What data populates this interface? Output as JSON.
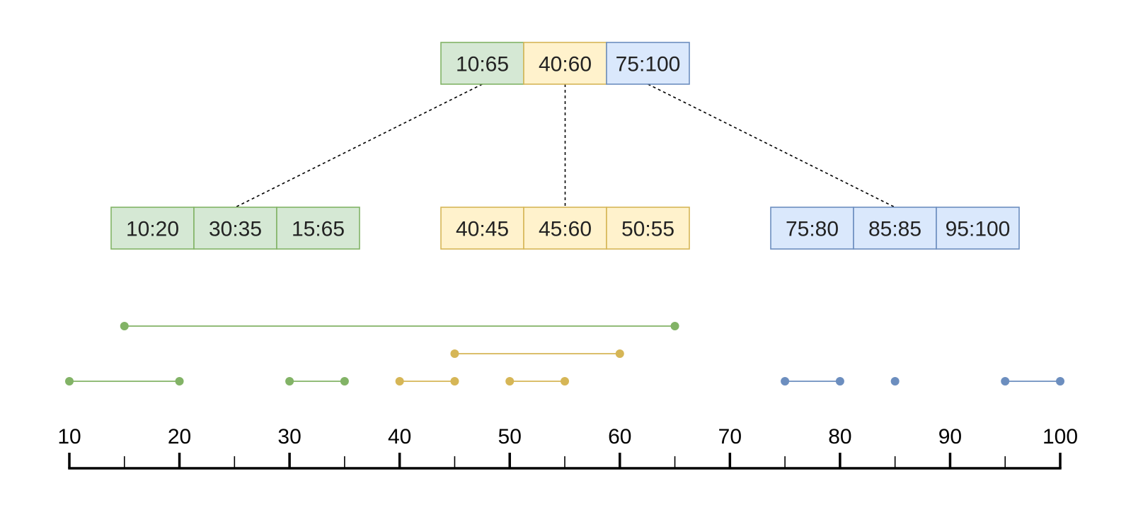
{
  "colors": {
    "green": {
      "fill": "#d5e8d4",
      "stroke": "#82b366"
    },
    "yellow": {
      "fill": "#fff2cc",
      "stroke": "#d6b656"
    },
    "blue": {
      "fill": "#dae8fc",
      "stroke": "#6c8ebf"
    },
    "text": "#222222",
    "axis": "#000000"
  },
  "root_node": {
    "cells": [
      {
        "label": "10:65",
        "color": "green"
      },
      {
        "label": "40:60",
        "color": "yellow"
      },
      {
        "label": "75:100",
        "color": "blue"
      }
    ]
  },
  "child_nodes": [
    {
      "color": "green",
      "cells": [
        "10:20",
        "30:35",
        "15:65"
      ]
    },
    {
      "color": "yellow",
      "cells": [
        "40:45",
        "45:60",
        "50:55"
      ]
    },
    {
      "color": "blue",
      "cells": [
        "75:80",
        "85:85",
        "95:100"
      ]
    }
  ],
  "intervals": [
    {
      "start": 15,
      "end": 65,
      "row": 0,
      "color": "green"
    },
    {
      "start": 45,
      "end": 60,
      "row": 1,
      "color": "yellow"
    },
    {
      "start": 10,
      "end": 20,
      "row": 2,
      "color": "green"
    },
    {
      "start": 30,
      "end": 35,
      "row": 2,
      "color": "green"
    },
    {
      "start": 40,
      "end": 45,
      "row": 2,
      "color": "yellow"
    },
    {
      "start": 50,
      "end": 55,
      "row": 2,
      "color": "yellow"
    },
    {
      "start": 75,
      "end": 80,
      "row": 2,
      "color": "blue"
    },
    {
      "start": 85,
      "end": 85,
      "row": 2,
      "color": "blue"
    },
    {
      "start": 95,
      "end": 100,
      "row": 2,
      "color": "blue"
    }
  ],
  "axis": {
    "min": 10,
    "max": 100,
    "major_ticks": [
      "10",
      "20",
      "30",
      "40",
      "50",
      "60",
      "70",
      "80",
      "90",
      "100"
    ],
    "minor_ticks": [
      15,
      25,
      35,
      45,
      55,
      65,
      75,
      85,
      95
    ]
  }
}
